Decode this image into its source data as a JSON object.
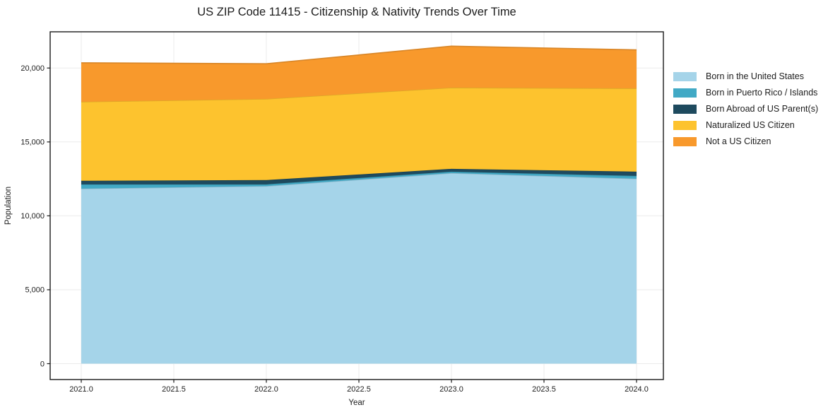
{
  "chart_data": {
    "type": "area",
    "stacked": true,
    "title": "US ZIP Code 11415 - Citizenship & Nativity Trends Over Time",
    "xlabel": "Year",
    "ylabel": "Population",
    "grid": true,
    "legend_position": "right-outside",
    "x": [
      2021,
      2022,
      2023,
      2024
    ],
    "x_ticks": [
      2021.0,
      2021.5,
      2022.0,
      2022.5,
      2023.0,
      2023.5,
      2024.0
    ],
    "x_tick_labels": [
      "2021.0",
      "2021.5",
      "2022.0",
      "2022.5",
      "2023.0",
      "2023.5",
      "2024.0"
    ],
    "y_ticks": [
      0,
      5000,
      10000,
      15000,
      20000
    ],
    "y_tick_labels": [
      "0",
      "5,000",
      "10,000",
      "15,000",
      "20,000"
    ],
    "xlim": [
      2020.832,
      2024.145
    ],
    "ylim": [
      -1075,
      22450
    ],
    "series": [
      {
        "name": "Born in the United States",
        "color": "#A5D4E9",
        "values": [
          11840,
          12010,
          12890,
          12510
        ]
      },
      {
        "name": "Born in Puerto Rico / Islands",
        "color": "#41A9C5",
        "values": [
          290,
          120,
          100,
          190
        ]
      },
      {
        "name": "Born Abroad of US Parent(s)",
        "color": "#1E4A5E",
        "values": [
          240,
          290,
          190,
          290
        ]
      },
      {
        "name": "Naturalized US Citizen",
        "color": "#FDC32E",
        "values": [
          5345,
          5490,
          5490,
          5630
        ]
      },
      {
        "name": "Not a US Citizen",
        "color": "#F8992C",
        "values": [
          2635,
          2380,
          2810,
          2610
        ]
      }
    ],
    "totals": [
      20350,
      20290,
      21480,
      21230
    ],
    "colors": {
      "grid": "#ebebeb",
      "frame": "#1a1a1a",
      "text": "#1c1c1c",
      "background": "#ffffff"
    }
  }
}
